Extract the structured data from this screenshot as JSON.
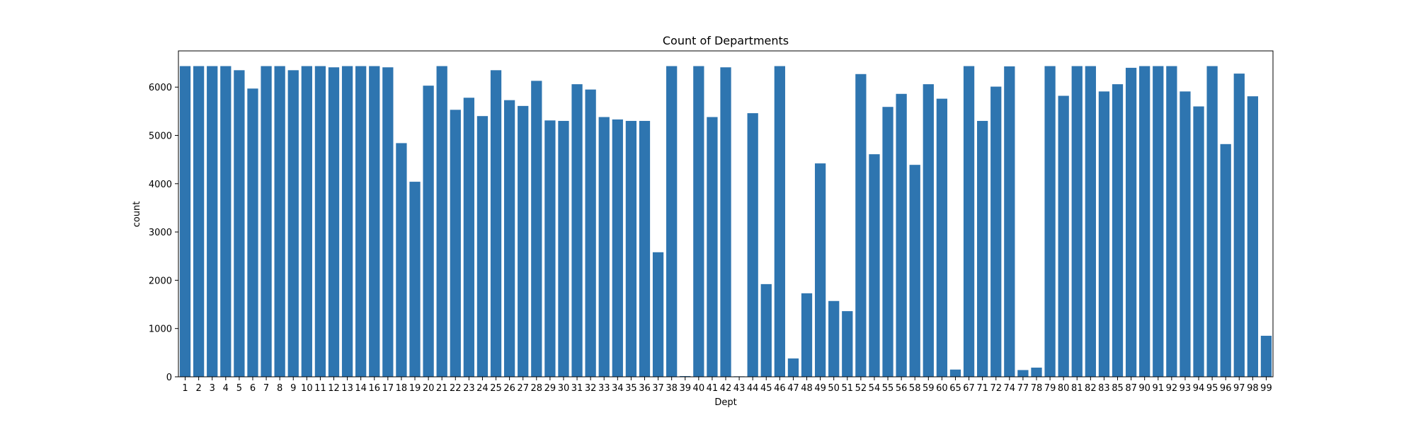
{
  "chart_data": {
    "type": "bar",
    "title": "Count of Departments",
    "xlabel": "Dept",
    "ylabel": "count",
    "ylim": [
      0,
      6750
    ],
    "yticks": [
      0,
      1000,
      2000,
      3000,
      4000,
      5000,
      6000
    ],
    "grid": false,
    "bar_color": "#2e75b0",
    "categories": [
      "1",
      "2",
      "3",
      "4",
      "5",
      "6",
      "7",
      "8",
      "9",
      "10",
      "11",
      "12",
      "13",
      "14",
      "16",
      "17",
      "18",
      "19",
      "20",
      "21",
      "22",
      "23",
      "24",
      "25",
      "26",
      "27",
      "28",
      "29",
      "30",
      "31",
      "32",
      "33",
      "34",
      "35",
      "36",
      "37",
      "38",
      "39",
      "40",
      "41",
      "42",
      "43",
      "44",
      "45",
      "46",
      "47",
      "48",
      "49",
      "50",
      "51",
      "52",
      "54",
      "55",
      "56",
      "58",
      "59",
      "60",
      "65",
      "67",
      "71",
      "72",
      "74",
      "77",
      "78",
      "79",
      "80",
      "81",
      "82",
      "83",
      "85",
      "87",
      "90",
      "91",
      "92",
      "93",
      "94",
      "95",
      "96",
      "97",
      "98",
      "99"
    ],
    "values": [
      6435,
      6435,
      6435,
      6435,
      6350,
      5970,
      6435,
      6435,
      6350,
      6435,
      6435,
      6410,
      6435,
      6435,
      6435,
      6410,
      4840,
      4040,
      6030,
      6435,
      5530,
      5780,
      5400,
      6350,
      5730,
      5610,
      6130,
      5310,
      5300,
      6060,
      5950,
      5380,
      5330,
      5300,
      5300,
      2580,
      6435,
      15,
      6435,
      5380,
      6410,
      10,
      5460,
      1920,
      6435,
      380,
      1730,
      4420,
      1570,
      1360,
      6270,
      4610,
      5590,
      5860,
      4390,
      6060,
      5760,
      150,
      6435,
      5300,
      6010,
      6430,
      140,
      190,
      6435,
      5820,
      6435,
      6435,
      5910,
      6060,
      6400,
      6435,
      6435,
      6435,
      5910,
      5600,
      6435,
      4820,
      6280,
      5810,
      850
    ]
  }
}
